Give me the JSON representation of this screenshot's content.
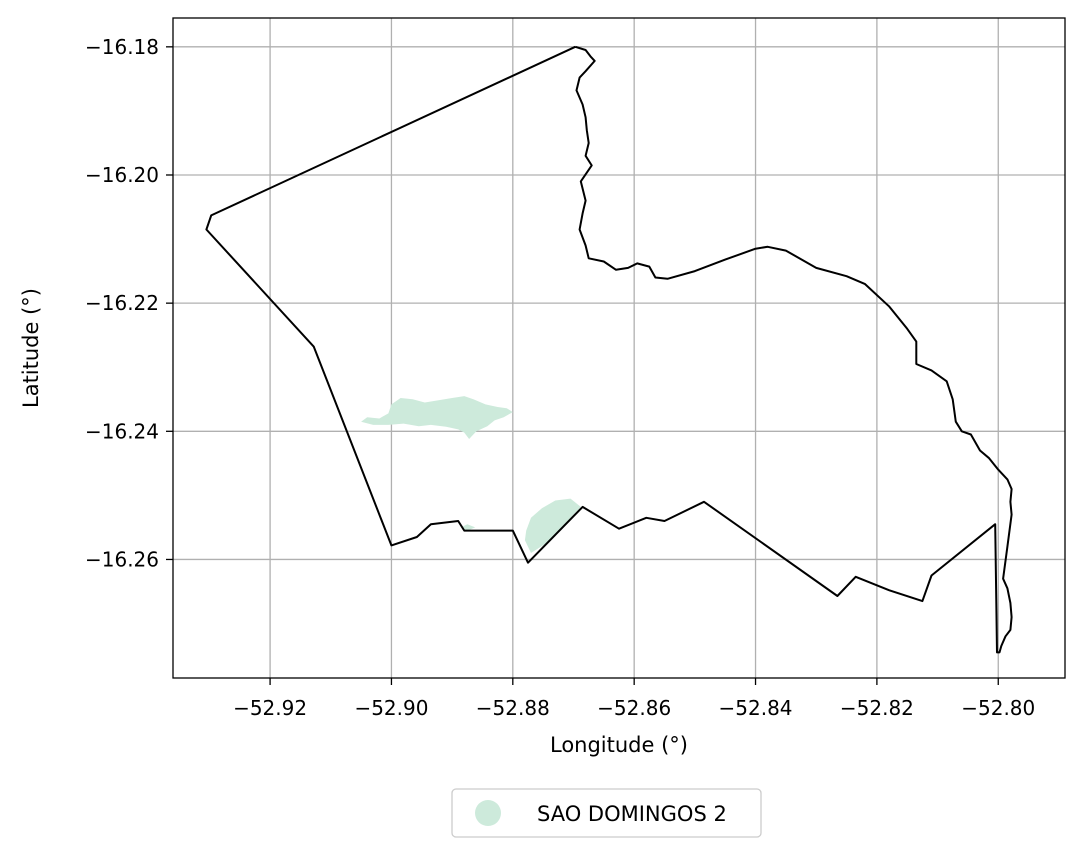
{
  "chart_data": {
    "type": "map",
    "xlabel": "Longitude (°)",
    "ylabel": "Latitude (°)",
    "xlim": [
      -52.936,
      -52.789
    ],
    "ylim": [
      -16.2785,
      -16.1755
    ],
    "grid": true,
    "legend_placement": "bottom-center (outside plot)",
    "x_ticks": [
      {
        "value": -52.92,
        "label": "−52.92"
      },
      {
        "value": -52.9,
        "label": "−52.90"
      },
      {
        "value": -52.88,
        "label": "−52.88"
      },
      {
        "value": -52.86,
        "label": "−52.86"
      },
      {
        "value": -52.84,
        "label": "−52.84"
      },
      {
        "value": -52.82,
        "label": "−52.82"
      },
      {
        "value": -52.8,
        "label": "−52.80"
      }
    ],
    "y_ticks": [
      {
        "value": -16.18,
        "label": "−16.18"
      },
      {
        "value": -16.2,
        "label": "−16.20"
      },
      {
        "value": -16.22,
        "label": "−16.22"
      },
      {
        "value": -16.24,
        "label": "−16.24"
      },
      {
        "value": -16.26,
        "label": "−16.26"
      }
    ],
    "boundary": {
      "stroke": "#000000",
      "coordinates": [
        [
          -52.8697,
          -16.18
        ],
        [
          -52.868,
          -16.1805
        ],
        [
          -52.8672,
          -16.1815
        ],
        [
          -52.8665,
          -16.1822
        ],
        [
          -52.868,
          -16.1838
        ],
        [
          -52.869,
          -16.1848
        ],
        [
          -52.8695,
          -16.1868
        ],
        [
          -52.8685,
          -16.189
        ],
        [
          -52.868,
          -16.191
        ],
        [
          -52.8678,
          -16.193
        ],
        [
          -52.8675,
          -16.195
        ],
        [
          -52.868,
          -16.197
        ],
        [
          -52.867,
          -16.1985
        ],
        [
          -52.8688,
          -16.201
        ],
        [
          -52.868,
          -16.204
        ],
        [
          -52.8685,
          -16.206
        ],
        [
          -52.869,
          -16.2085
        ],
        [
          -52.868,
          -16.211
        ],
        [
          -52.8675,
          -16.213
        ],
        [
          -52.865,
          -16.2135
        ],
        [
          -52.863,
          -16.2148
        ],
        [
          -52.861,
          -16.2145
        ],
        [
          -52.8595,
          -16.2138
        ],
        [
          -52.8575,
          -16.2143
        ],
        [
          -52.8565,
          -16.216
        ],
        [
          -52.8545,
          -16.2162
        ],
        [
          -52.85,
          -16.215
        ],
        [
          -52.845,
          -16.2132
        ],
        [
          -52.84,
          -16.2115
        ],
        [
          -52.838,
          -16.2112
        ],
        [
          -52.835,
          -16.2118
        ],
        [
          -52.83,
          -16.2145
        ],
        [
          -52.825,
          -16.2158
        ],
        [
          -52.822,
          -16.217
        ],
        [
          -52.818,
          -16.2205
        ],
        [
          -52.815,
          -16.224
        ],
        [
          -52.8135,
          -16.226
        ],
        [
          -52.8135,
          -16.2295
        ],
        [
          -52.811,
          -16.2305
        ],
        [
          -52.8085,
          -16.2322
        ],
        [
          -52.8075,
          -16.235
        ],
        [
          -52.807,
          -16.2385
        ],
        [
          -52.806,
          -16.24
        ],
        [
          -52.8045,
          -16.2405
        ],
        [
          -52.803,
          -16.243
        ],
        [
          -52.8015,
          -16.2442
        ],
        [
          -52.8,
          -16.246
        ],
        [
          -52.7985,
          -16.2475
        ],
        [
          -52.7978,
          -16.249
        ],
        [
          -52.798,
          -16.251
        ],
        [
          -52.7978,
          -16.253
        ],
        [
          -52.7985,
          -16.258
        ],
        [
          -52.7992,
          -16.263
        ],
        [
          -52.7985,
          -16.2645
        ],
        [
          -52.798,
          -16.2668
        ],
        [
          -52.7978,
          -16.269
        ],
        [
          -52.798,
          -16.271
        ],
        [
          -52.7988,
          -16.272
        ],
        [
          -52.7995,
          -16.2735
        ],
        [
          -52.7998,
          -16.2745
        ],
        [
          -52.8002,
          -16.2745
        ],
        [
          -52.8005,
          -16.2545
        ],
        [
          -52.811,
          -16.2625
        ],
        [
          -52.8125,
          -16.2665
        ],
        [
          -52.818,
          -16.2648
        ],
        [
          -52.8235,
          -16.2627
        ],
        [
          -52.8265,
          -16.2657
        ],
        [
          -52.8485,
          -16.251
        ],
        [
          -52.855,
          -16.254
        ],
        [
          -52.858,
          -16.2535
        ],
        [
          -52.8625,
          -16.2552
        ],
        [
          -52.8685,
          -16.2518
        ],
        [
          -52.8775,
          -16.2605
        ],
        [
          -52.88,
          -16.2555
        ],
        [
          -52.888,
          -16.2555
        ],
        [
          -52.889,
          -16.254
        ],
        [
          -52.8935,
          -16.2545
        ],
        [
          -52.8958,
          -16.2565
        ],
        [
          -52.9,
          -16.2578
        ],
        [
          -52.9128,
          -16.2268
        ],
        [
          -52.9305,
          -16.2085
        ],
        [
          -52.9297,
          -16.2063
        ],
        [
          -52.8697,
          -16.18
        ]
      ]
    },
    "series": [
      {
        "name": "SAO DOMINGOS 2",
        "color": "#cdeadb",
        "polygons": [
          [
            [
              -52.905,
              -16.2385
            ],
            [
              -52.904,
              -16.2378
            ],
            [
              -52.902,
              -16.238
            ],
            [
              -52.9005,
              -16.2372
            ],
            [
              -52.9,
              -16.2358
            ],
            [
              -52.8985,
              -16.2348
            ],
            [
              -52.8965,
              -16.235
            ],
            [
              -52.8945,
              -16.2355
            ],
            [
              -52.8925,
              -16.2352
            ],
            [
              -52.89,
              -16.2348
            ],
            [
              -52.888,
              -16.2345
            ],
            [
              -52.8865,
              -16.235
            ],
            [
              -52.8845,
              -16.2358
            ],
            [
              -52.8825,
              -16.2362
            ],
            [
              -52.881,
              -16.2364
            ],
            [
              -52.88,
              -16.237
            ],
            [
              -52.8815,
              -16.2378
            ],
            [
              -52.883,
              -16.2383
            ],
            [
              -52.8842,
              -16.2392
            ],
            [
              -52.886,
              -16.24
            ],
            [
              -52.8872,
              -16.2412
            ],
            [
              -52.888,
              -16.2402
            ],
            [
              -52.889,
              -16.2397
            ],
            [
              -52.891,
              -16.2393
            ],
            [
              -52.8935,
              -16.239
            ],
            [
              -52.8955,
              -16.2392
            ],
            [
              -52.898,
              -16.2388
            ],
            [
              -52.9005,
              -16.239
            ],
            [
              -52.903,
              -16.239
            ],
            [
              -52.905,
              -16.2385
            ]
          ],
          [
            [
              -52.878,
              -16.257
            ],
            [
              -52.8778,
              -16.2555
            ],
            [
              -52.877,
              -16.2535
            ],
            [
              -52.8752,
              -16.252
            ],
            [
              -52.873,
              -16.2508
            ],
            [
              -52.8705,
              -16.2505
            ],
            [
              -52.8688,
              -16.2518
            ],
            [
              -52.8715,
              -16.2545
            ],
            [
              -52.8745,
              -16.2575
            ],
            [
              -52.877,
              -16.259
            ],
            [
              -52.878,
              -16.257
            ]
          ],
          [
            [
              -52.8885,
              -16.255
            ],
            [
              -52.8875,
              -16.2545
            ],
            [
              -52.8862,
              -16.255
            ],
            [
              -52.8875,
              -16.2555
            ],
            [
              -52.8885,
              -16.255
            ]
          ]
        ]
      }
    ]
  }
}
